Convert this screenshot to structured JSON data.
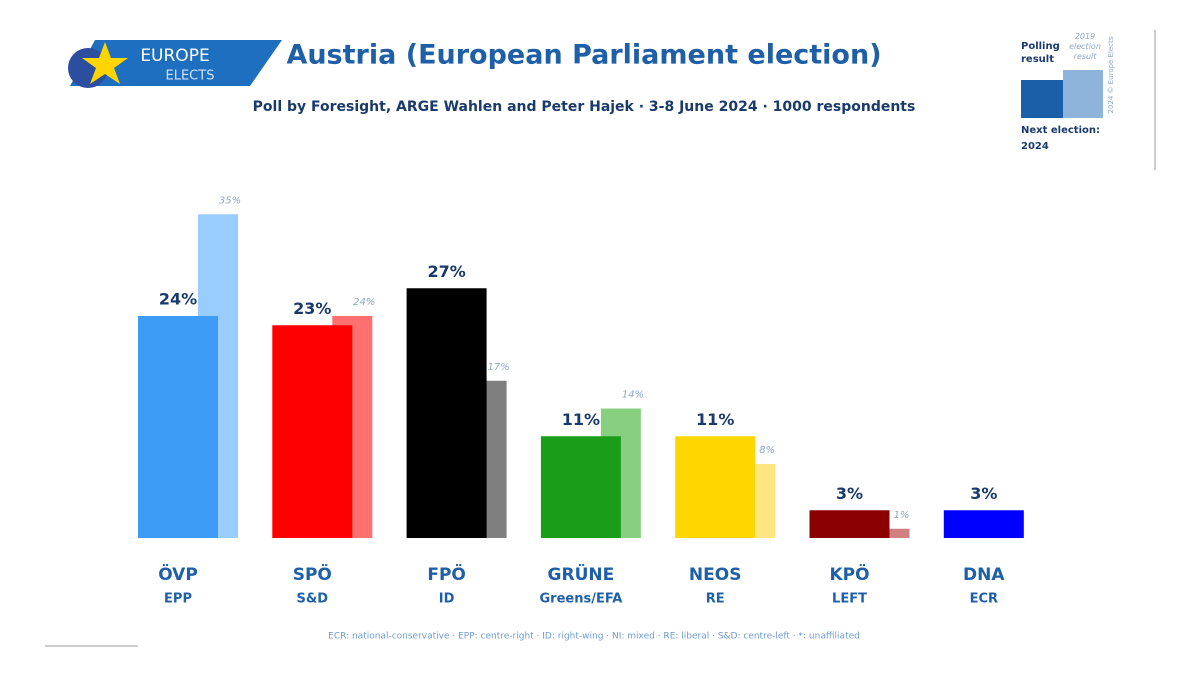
{
  "chart_data": {
    "type": "bar",
    "title": "Austria (European Parliament election)",
    "subtitle": "Poll by Foresight, ARGE Wahlen and Peter Hajek · 3-8 June 2024 · 1000 respondents",
    "logo": [
      "EUROPE",
      "ELECTS"
    ],
    "categories": [
      "ÖVP",
      "SPÖ",
      "FPÖ",
      "GRÜNE",
      "NEOS",
      "KPÖ",
      "DNA"
    ],
    "groups": [
      "EPP",
      "S&D",
      "ID",
      "Greens/EFA",
      "RE",
      "LEFT",
      "ECR"
    ],
    "series": [
      {
        "name": "Polling result",
        "values": [
          24,
          23,
          27,
          11,
          11,
          3,
          3
        ],
        "value_labels": [
          "24%",
          "23%",
          "27%",
          "11%",
          "11%",
          "3%",
          "3%"
        ],
        "colors": [
          "#3d9cf5",
          "#ff0000",
          "#000000",
          "#1a9e1a",
          "#ffd700",
          "#8b0000",
          "#0000ff"
        ]
      },
      {
        "name": "2019 election result",
        "values": [
          35,
          24,
          17,
          14,
          8,
          1,
          null
        ],
        "value_labels": [
          "35%",
          "24%",
          "17%",
          "14%",
          "8%",
          "1%",
          null
        ],
        "colors": [
          "#99ccff",
          "#ff7070",
          "#7f7f7f",
          "#88d080",
          "#ffe680",
          "#d08080",
          null
        ]
      }
    ],
    "next_election": [
      "Next election:",
      "2024"
    ],
    "copyright": "2024 © Europe Elects",
    "footnote": "ECR: national-conservative · EPP: centre-right · ID: right-wing · NI: mixed · RE: liberal · S&D: centre-left · *: unaffiliated"
  }
}
